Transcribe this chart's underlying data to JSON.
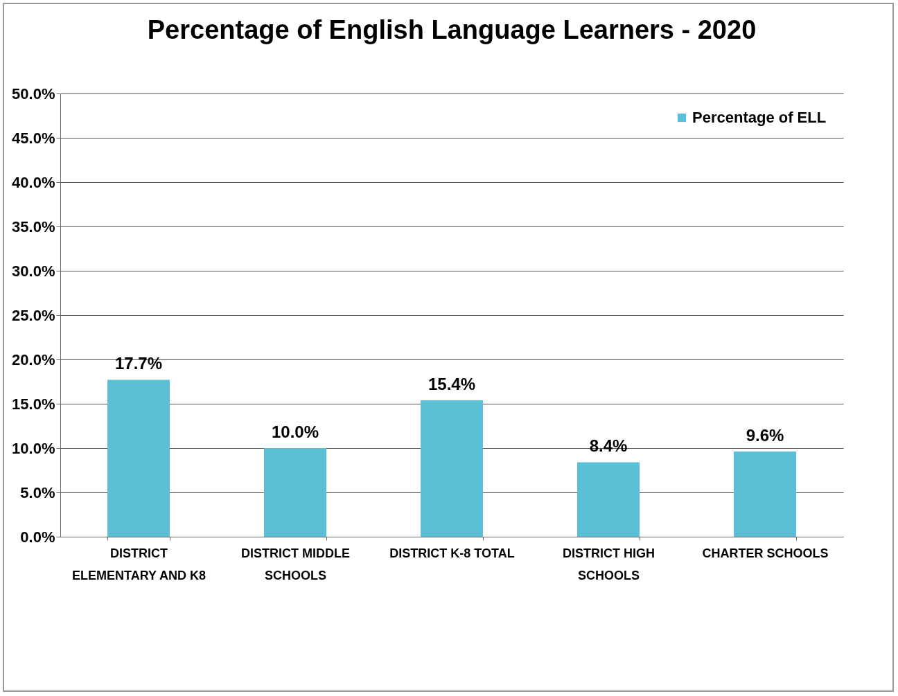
{
  "chart_data": {
    "type": "bar",
    "title": "Percentage of English Language Learners - 2020",
    "categories": [
      "DISTRICT ELEMENTARY AND K8",
      "DISTRICT MIDDLE SCHOOLS",
      "DISTRICT K-8 TOTAL",
      "DISTRICT HIGH SCHOOLS",
      "CHARTER SCHOOLS"
    ],
    "series": [
      {
        "name": "Percentage of ELL",
        "color": "#5bbfd6",
        "values": [
          17.7,
          10.0,
          15.4,
          8.4,
          9.6
        ],
        "value_labels": [
          "17.7%",
          "10.0%",
          "15.4%",
          "8.4%",
          "9.6%"
        ]
      }
    ],
    "ylim": [
      0,
      50
    ],
    "yticks": [
      {
        "value": 0,
        "label": "0.0%"
      },
      {
        "value": 5,
        "label": "5.0%"
      },
      {
        "value": 10,
        "label": "10.0%"
      },
      {
        "value": 15,
        "label": "15.0%"
      },
      {
        "value": 20,
        "label": "20.0%"
      },
      {
        "value": 25,
        "label": "25.0%"
      },
      {
        "value": 30,
        "label": "30.0%"
      },
      {
        "value": 35,
        "label": "35.0%"
      },
      {
        "value": 40,
        "label": "40.0%"
      },
      {
        "value": 45,
        "label": "45.0%"
      },
      {
        "value": 50,
        "label": "50.0%"
      }
    ],
    "grid": "y",
    "legend": "top right"
  }
}
